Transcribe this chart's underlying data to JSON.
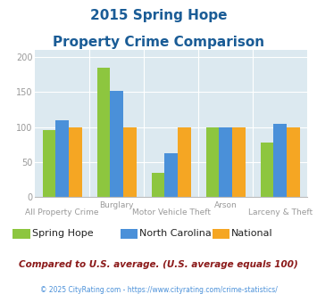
{
  "title_line1": "2015 Spring Hope",
  "title_line2": "Property Crime Comparison",
  "categories": [
    "All Property Crime",
    "Burglary",
    "Motor Vehicle Theft",
    "Arson",
    "Larceny & Theft"
  ],
  "cat_labels_upper": [
    "",
    "Burglary",
    "",
    "Arson",
    ""
  ],
  "cat_labels_lower": [
    "All Property Crime",
    "",
    "Motor Vehicle Theft",
    "",
    "Larceny & Theft"
  ],
  "series": [
    {
      "name": "Spring Hope",
      "values": [
        95,
        185,
        35,
        100,
        78
      ],
      "color": "#8dc63f"
    },
    {
      "name": "North Carolina",
      "values": [
        110,
        152,
        62,
        100,
        105
      ],
      "color": "#4a90d9"
    },
    {
      "name": "National",
      "values": [
        100,
        100,
        100,
        100,
        100
      ],
      "color": "#f5a623"
    }
  ],
  "ylim": [
    0,
    210
  ],
  "yticks": [
    0,
    50,
    100,
    150,
    200
  ],
  "plot_bg_color": "#dce9f0",
  "title_color": "#1a5c96",
  "axis_label_color": "#999999",
  "grid_color": "#ffffff",
  "footer_text": "Compared to U.S. average. (U.S. average equals 100)",
  "copyright_text": "© 2025 CityRating.com - https://www.cityrating.com/crime-statistics/",
  "footer_color": "#8b1a1a",
  "copyright_color": "#4a90d9"
}
